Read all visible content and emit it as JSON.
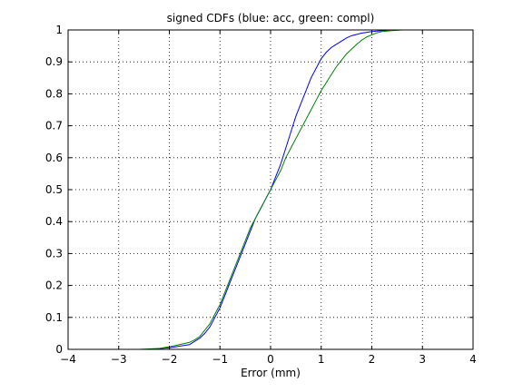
{
  "chart_data": {
    "type": "line",
    "title": "signed CDFs (blue: acc, green: compl)",
    "xlabel": "Error (mm)",
    "ylabel": "",
    "xlim": [
      -4,
      4
    ],
    "ylim": [
      0,
      1
    ],
    "xticks": [
      "−4",
      "−3",
      "−2",
      "−1",
      "0",
      "1",
      "2",
      "3",
      "4"
    ],
    "yticks": [
      "0",
      "0.1",
      "0.2",
      "0.3",
      "0.4",
      "0.5",
      "0.6",
      "0.7",
      "0.8",
      "0.9",
      "1"
    ],
    "grid": true,
    "series": [
      {
        "color": "#0000ff",
        "x": [
          -4,
          -2.4,
          -2.0,
          -1.8,
          -1.6,
          -1.5,
          -1.4,
          -1.3,
          -1.2,
          -1.1,
          -1.0,
          -0.9,
          -0.8,
          -0.7,
          -0.6,
          -0.5,
          -0.4,
          -0.3,
          -0.2,
          -0.1,
          0.0,
          0.1,
          0.2,
          0.3,
          0.4,
          0.5,
          0.6,
          0.7,
          0.8,
          0.9,
          1.0,
          1.1,
          1.2,
          1.3,
          1.4,
          1.5,
          1.6,
          1.8,
          2.0,
          2.2,
          2.4,
          4
        ],
        "y": [
          0,
          0,
          0.005,
          0.01,
          0.015,
          0.025,
          0.035,
          0.05,
          0.07,
          0.1,
          0.13,
          0.17,
          0.21,
          0.25,
          0.29,
          0.33,
          0.37,
          0.41,
          0.44,
          0.47,
          0.5,
          0.54,
          0.58,
          0.63,
          0.68,
          0.73,
          0.77,
          0.81,
          0.85,
          0.88,
          0.91,
          0.93,
          0.945,
          0.955,
          0.965,
          0.975,
          0.982,
          0.99,
          0.995,
          0.998,
          1.0,
          1.0
        ]
      },
      {
        "color": "#008000",
        "x": [
          -4,
          -2.6,
          -2.2,
          -2.0,
          -1.8,
          -1.6,
          -1.5,
          -1.4,
          -1.3,
          -1.2,
          -1.1,
          -1.0,
          -0.9,
          -0.8,
          -0.7,
          -0.6,
          -0.5,
          -0.4,
          -0.3,
          -0.2,
          -0.1,
          0.0,
          0.1,
          0.2,
          0.3,
          0.4,
          0.5,
          0.6,
          0.7,
          0.8,
          0.9,
          1.0,
          1.1,
          1.2,
          1.3,
          1.4,
          1.5,
          1.6,
          1.7,
          1.8,
          1.9,
          2.0,
          2.1,
          2.2,
          2.4,
          2.6,
          4
        ],
        "y": [
          0,
          0,
          0.003,
          0.008,
          0.015,
          0.022,
          0.03,
          0.04,
          0.06,
          0.08,
          0.11,
          0.14,
          0.18,
          0.22,
          0.26,
          0.3,
          0.34,
          0.38,
          0.41,
          0.44,
          0.47,
          0.5,
          0.53,
          0.56,
          0.6,
          0.63,
          0.66,
          0.69,
          0.72,
          0.75,
          0.78,
          0.81,
          0.835,
          0.86,
          0.885,
          0.905,
          0.925,
          0.94,
          0.955,
          0.968,
          0.978,
          0.985,
          0.991,
          0.995,
          0.998,
          1.0,
          1.0
        ]
      }
    ]
  }
}
